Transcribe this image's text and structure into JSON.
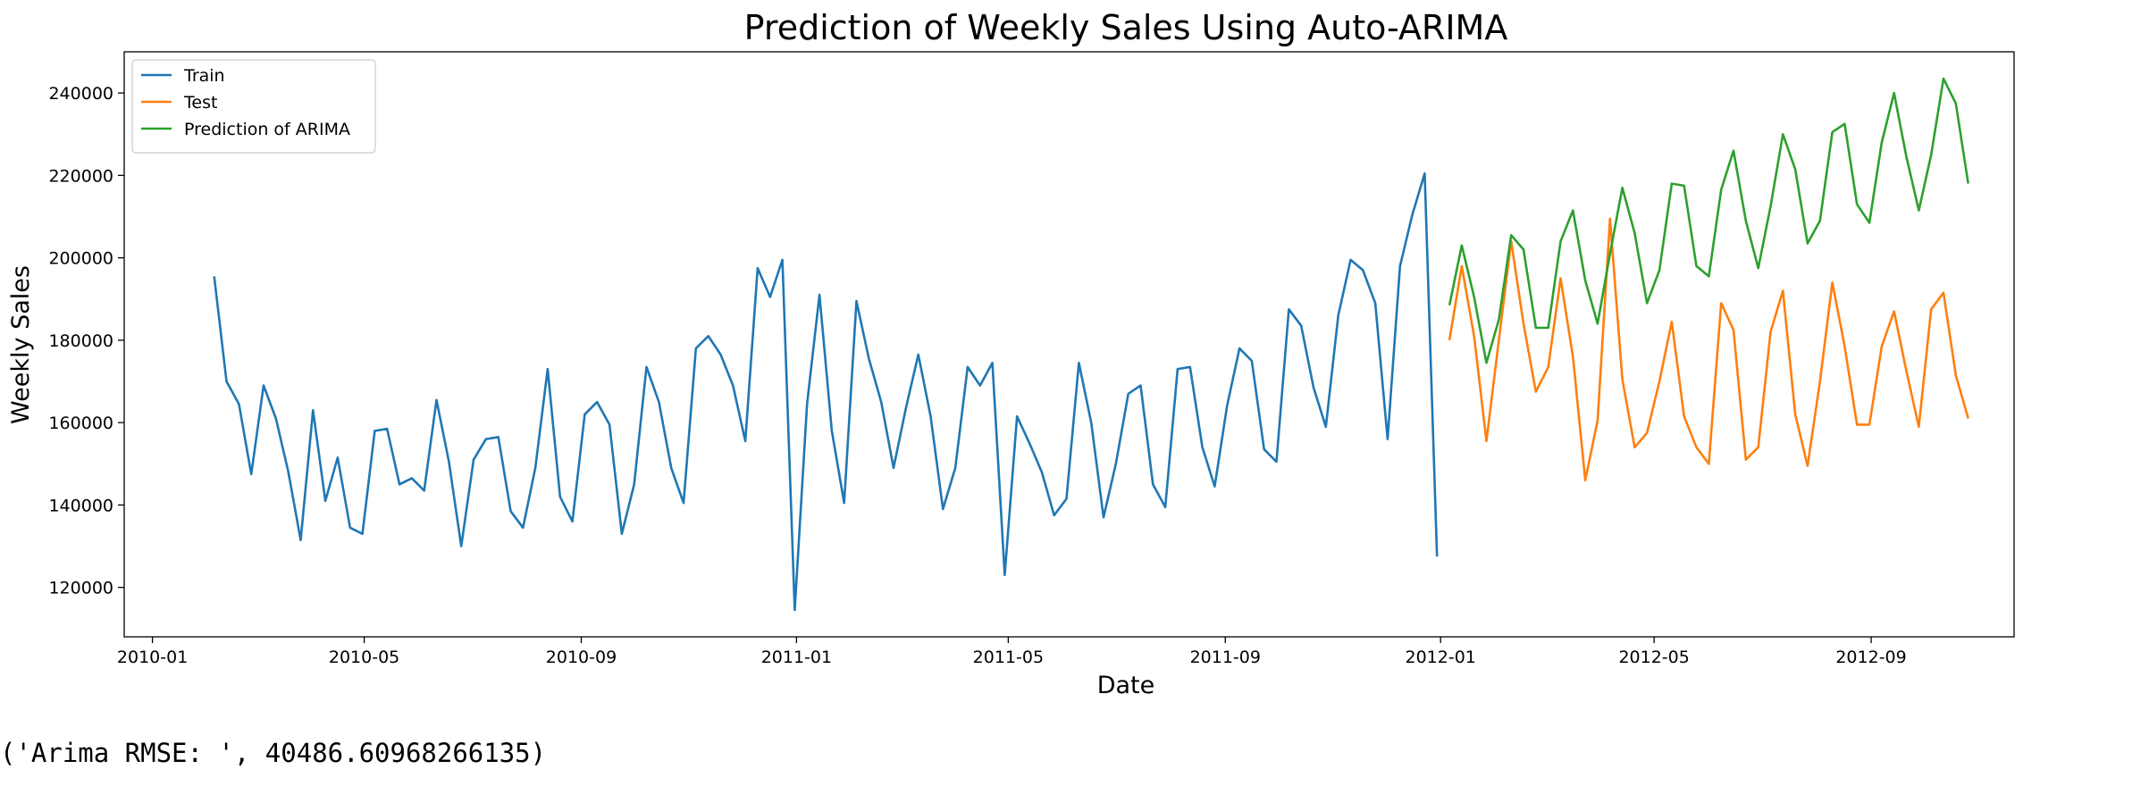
{
  "chart_data": {
    "type": "line",
    "title": "Prediction of Weekly Sales Using Auto-ARIMA",
    "xlabel": "Date",
    "ylabel": "Weekly Sales",
    "x_ticks": [
      "2010-01",
      "2010-05",
      "2010-09",
      "2011-01",
      "2011-05",
      "2011-09",
      "2012-01",
      "2012-05",
      "2012-09"
    ],
    "y_ticks": [
      120000,
      140000,
      160000,
      180000,
      200000,
      220000,
      240000
    ],
    "xlim": [
      "2009-12-16",
      "2012-11-21"
    ],
    "ylim": [
      108000,
      250000
    ],
    "grid": false,
    "legend_position": "top-left",
    "series": [
      {
        "name": "Train",
        "color": "#1f77b4",
        "start": "2010-02-05",
        "step_days": 7,
        "values": [
          195500,
          170000,
          164500,
          147500,
          169000,
          161000,
          148000,
          131500,
          163000,
          141000,
          151500,
          134500,
          133000,
          158000,
          158500,
          145000,
          146500,
          143500,
          165500,
          150500,
          130000,
          151000,
          156000,
          156500,
          138500,
          134500,
          149000,
          173000,
          142000,
          136000,
          162000,
          165000,
          159500,
          133000,
          145000,
          173500,
          165000,
          149000,
          140500,
          178000,
          181000,
          176500,
          169000,
          155500,
          197500,
          190500,
          199500,
          114500,
          164500,
          191000,
          158000,
          140500,
          189500,
          175500,
          165000,
          149000,
          163500,
          176500,
          161500,
          139000,
          149000,
          173500,
          169000,
          174500,
          123000,
          161500,
          155000,
          148000,
          137500,
          141500,
          174500,
          160000,
          137000,
          150000,
          167000,
          169000,
          145000,
          139500,
          173000,
          173500,
          154000,
          144500,
          164000,
          178000,
          175000,
          153500,
          150500,
          187500,
          183500,
          168500,
          159000,
          186000,
          199500,
          197000,
          189000,
          156000,
          198000,
          210500,
          220500,
          127500
        ]
      },
      {
        "name": "Test",
        "color": "#ff7f0e",
        "start": "2012-01-06",
        "step_days": 7,
        "values": [
          180000,
          198000,
          181000,
          155500,
          180000,
          204000,
          184000,
          167500,
          173500,
          195000,
          176000,
          146000,
          160500,
          209500,
          170500,
          154000,
          157500,
          170000,
          184500,
          161500,
          154000,
          150000,
          189000,
          182500,
          151000,
          154000,
          182000,
          192000,
          162000,
          149500,
          170000,
          194000,
          178500,
          159500,
          159500,
          178500,
          187000,
          172500,
          159000,
          187500,
          191500,
          171500,
          161000
        ]
      },
      {
        "name": "Prediction of ARIMA",
        "color": "#2ca02c",
        "start": "2012-01-06",
        "step_days": 7,
        "values": [
          188500,
          203000,
          190500,
          174500,
          185000,
          205500,
          202000,
          183000,
          183000,
          204000,
          211500,
          194500,
          184000,
          201000,
          217000,
          206000,
          189000,
          197000,
          218000,
          217500,
          198000,
          195500,
          216500,
          226000,
          209000,
          197500,
          212500,
          230000,
          221500,
          203500,
          209000,
          230500,
          232500,
          213000,
          208500,
          228000,
          240000,
          224500,
          211500,
          225000,
          243500,
          237500,
          218000
        ]
      }
    ]
  },
  "output_text": "('Arima RMSE: ', 40486.60968266135)"
}
